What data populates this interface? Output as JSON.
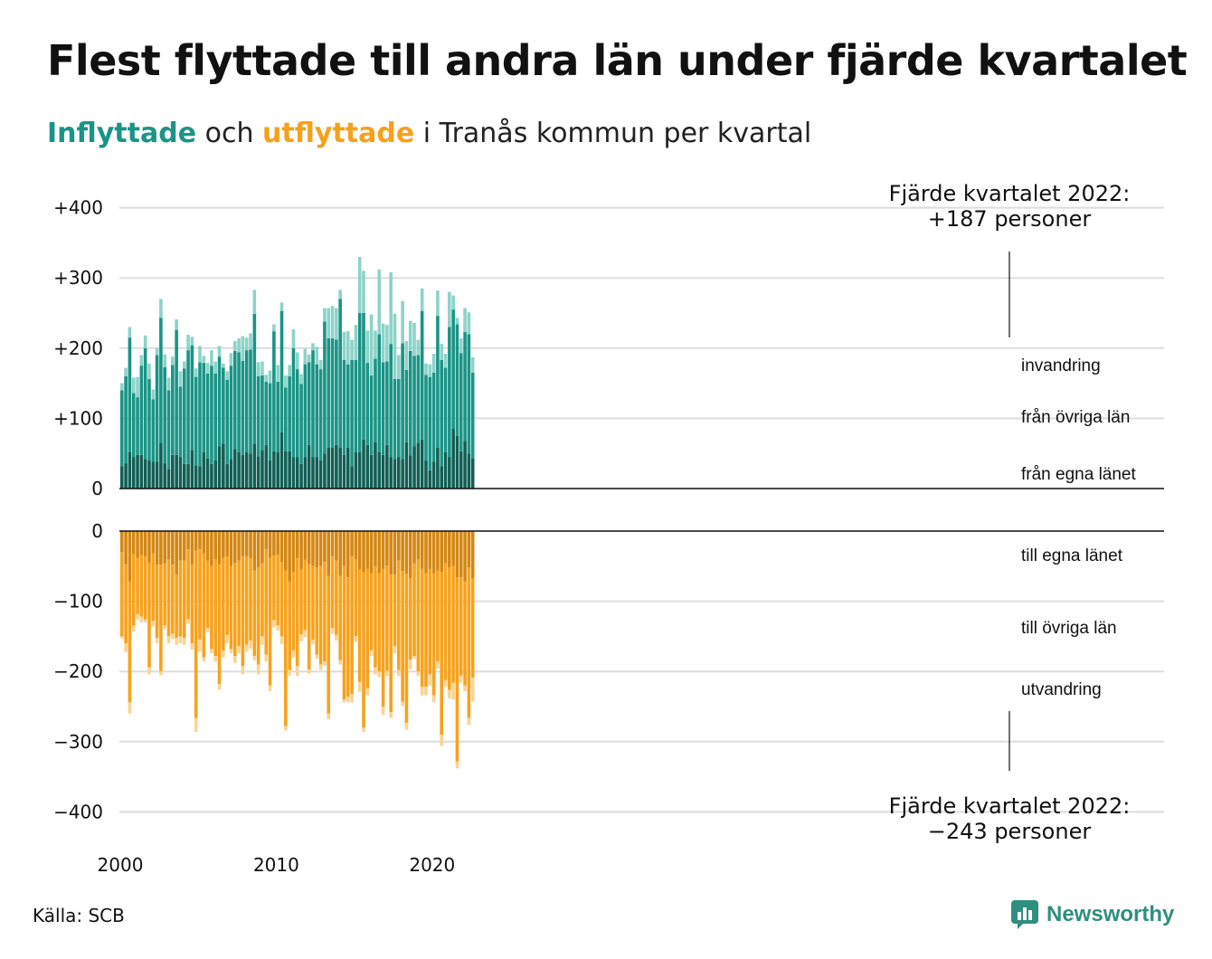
{
  "title": "Flest flyttade till andra län under fjärde kvartalet",
  "subtitle": {
    "part_in": "Inflyttade",
    "part_mid": " och ",
    "part_out": "utflyttade",
    "part_end": " i Tranås kommun per kvartal"
  },
  "source": "Källa: SCB",
  "logo_text": "Newsworthy",
  "colors": {
    "in_own": "#115f54",
    "in_other": "#1a9486",
    "in_immigration": "#8dd3c9",
    "out_own": "#d48713",
    "out_other": "#f7a21d",
    "out_emigration": "#fbd494",
    "grid": "#dddddd",
    "axis": "#111111"
  },
  "annotations": {
    "top": [
      "Fjärde kvartalet 2022:",
      "+187 personer"
    ],
    "bottom": [
      "Fjärde kvartalet 2022:",
      "−243 personer"
    ]
  },
  "segment_labels": {
    "in": [
      "invandring",
      "från övriga län",
      "från egna länet"
    ],
    "out": [
      "till egna länet",
      "till övriga län",
      "utvandring"
    ]
  },
  "chart_data": {
    "type": "bar",
    "stacked": true,
    "diverging": true,
    "x_start": "2000 Q1",
    "x_end": "2022 Q4",
    "x_ticks": [
      "2000",
      "2010",
      "2020"
    ],
    "top_panel": {
      "y_ticks": [
        "0",
        "+100",
        "+200",
        "+300",
        "+400"
      ],
      "ylim": [
        0,
        400
      ],
      "series": [
        {
          "name": "från egna länet",
          "values": [
            32,
            36,
            52,
            45,
            48,
            48,
            42,
            40,
            38,
            38,
            65,
            36,
            28,
            48,
            48,
            45,
            35,
            35,
            55,
            33,
            32,
            52,
            43,
            35,
            40,
            60,
            64,
            35,
            42,
            56,
            52,
            48,
            52,
            50,
            64,
            46,
            55,
            62,
            40,
            53,
            52,
            80,
            53,
            53,
            45,
            45,
            35,
            45,
            62,
            45,
            45,
            40,
            50,
            58,
            58,
            62,
            58,
            48,
            58,
            32,
            52,
            52,
            70,
            62,
            48,
            66,
            52,
            48,
            62,
            45,
            42,
            45,
            42,
            66,
            47,
            60,
            65,
            70,
            40,
            26,
            38,
            58,
            32,
            52,
            45,
            85,
            75,
            53,
            68,
            50,
            43
          ]
        },
        {
          "name": "från övriga län",
          "values": [
            108,
            124,
            163,
            91,
            82,
            127,
            158,
            116,
            89,
            152,
            178,
            137,
            112,
            128,
            178,
            100,
            136,
            162,
            149,
            126,
            148,
            127,
            121,
            140,
            124,
            128,
            108,
            120,
            133,
            140,
            142,
            134,
            145,
            148,
            185,
            114,
            106,
            90,
            110,
            171,
            100,
            173,
            91,
            107,
            155,
            125,
            114,
            132,
            118,
            152,
            132,
            130,
            188,
            156,
            156,
            150,
            212,
            135,
            119,
            151,
            131,
            198,
            180,
            117,
            113,
            119,
            168,
            132,
            119,
            161,
            114,
            111,
            165,
            103,
            149,
            129,
            125,
            183,
            122,
            133,
            127,
            188,
            151,
            120,
            185,
            170,
            159,
            140,
            155,
            170,
            122
          ]
        },
        {
          "name": "invandring",
          "values": [
            10,
            12,
            15,
            22,
            29,
            15,
            18,
            22,
            14,
            10,
            27,
            18,
            18,
            12,
            15,
            22,
            10,
            22,
            12,
            12,
            23,
            10,
            15,
            22,
            17,
            15,
            6,
            12,
            18,
            14,
            20,
            35,
            18,
            23,
            34,
            20,
            20,
            10,
            18,
            10,
            24,
            12,
            17,
            16,
            27,
            24,
            14,
            22,
            11,
            10,
            25,
            13,
            19,
            43,
            46,
            45,
            13,
            40,
            47,
            29,
            50,
            80,
            60,
            46,
            87,
            40,
            92,
            55,
            52,
            102,
            93,
            34,
            60,
            41,
            43,
            47,
            22,
            32,
            16,
            18,
            27,
            36,
            23,
            20,
            50,
            20,
            9,
            21,
            34,
            31,
            22
          ]
        }
      ]
    },
    "bottom_panel": {
      "y_ticks": [
        "0",
        "−100",
        "−200",
        "−300",
        "−400"
      ],
      "ylim": [
        -400,
        0
      ],
      "series": [
        {
          "name": "till egna länet",
          "values": [
            30,
            48,
            72,
            33,
            38,
            34,
            36,
            46,
            32,
            48,
            48,
            46,
            40,
            48,
            62,
            42,
            42,
            26,
            48,
            28,
            26,
            32,
            42,
            50,
            40,
            48,
            38,
            36,
            50,
            46,
            42,
            36,
            36,
            38,
            56,
            52,
            46,
            26,
            38,
            35,
            34,
            44,
            56,
            72,
            58,
            38,
            55,
            41,
            47,
            50,
            52,
            50,
            44,
            64,
            36,
            42,
            64,
            50,
            66,
            36,
            40,
            55,
            58,
            54,
            60,
            50,
            60,
            54,
            49,
            62,
            62,
            42,
            57,
            61,
            67,
            46,
            40,
            54,
            60,
            54,
            60,
            56,
            58,
            46,
            52,
            50,
            66,
            66,
            72,
            52,
            67
          ]
        },
        {
          "name": "till övriga län",
          "values": [
            120,
            112,
            172,
            102,
            80,
            88,
            90,
            148,
            96,
            104,
            152,
            88,
            110,
            98,
            90,
            108,
            110,
            100,
            112,
            238,
            128,
            148,
            96,
            118,
            138,
            170,
            132,
            112,
            118,
            132,
            122,
            156,
            126,
            118,
            122,
            138,
            104,
            150,
            182,
            92,
            100,
            106,
            222,
            126,
            112,
            154,
            92,
            100,
            150,
            105,
            124,
            140,
            142,
            196,
            102,
            106,
            120,
            190,
            170,
            196,
            110,
            160,
            222,
            170,
            110,
            144,
            140,
            196,
            150,
            196,
            102,
            156,
            186,
            212,
            116,
            132,
            160,
            168,
            162,
            150,
            174,
            130,
            232,
            166,
            174,
            166,
            262,
            140,
            148,
            214,
            142
          ]
        },
        {
          "name": "utvandring",
          "values": [
            3,
            12,
            16,
            8,
            8,
            8,
            4,
            10,
            8,
            8,
            5,
            6,
            10,
            8,
            10,
            10,
            10,
            6,
            9,
            20,
            18,
            6,
            6,
            6,
            8,
            8,
            10,
            12,
            6,
            10,
            10,
            12,
            10,
            12,
            6,
            14,
            12,
            10,
            8,
            10,
            8,
            11,
            6,
            8,
            10,
            14,
            10,
            10,
            6,
            6,
            6,
            8,
            6,
            8,
            8,
            8,
            6,
            4,
            8,
            12,
            8,
            14,
            6,
            10,
            8,
            10,
            8,
            12,
            8,
            8,
            10,
            8,
            6,
            10,
            14,
            4,
            6,
            12,
            12,
            16,
            10,
            10,
            16,
            10,
            12,
            24,
            10,
            10,
            8,
            10,
            34
          ]
        }
      ]
    }
  }
}
